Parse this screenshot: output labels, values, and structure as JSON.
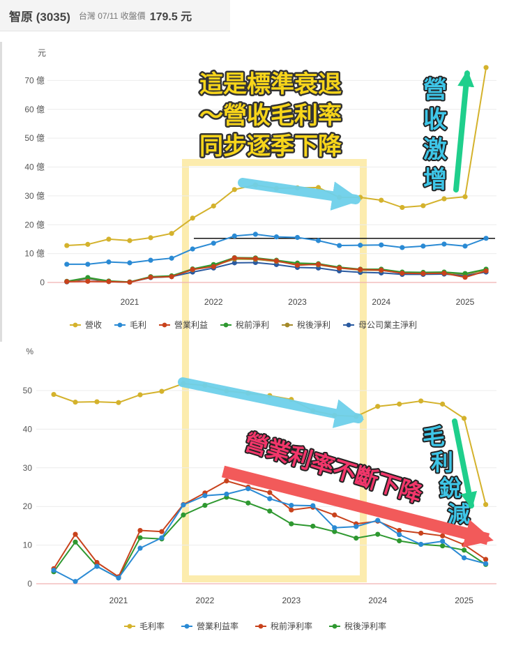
{
  "header": {
    "name": "智原 (3035)",
    "market_date": "台灣 07/11 收盤價",
    "price": "179.5 元"
  },
  "chart_data": [
    {
      "type": "line",
      "title": "",
      "ylabel": "元",
      "ylim": [
        0,
        75
      ],
      "yticks": [
        "0",
        "10 億",
        "20 億",
        "30 億",
        "40 億",
        "50 億",
        "60 億",
        "70 億"
      ],
      "x": [
        2020.25,
        2020.5,
        2020.75,
        2021.0,
        2021.25,
        2021.5,
        2021.75,
        2022.0,
        2022.25,
        2022.5,
        2022.75,
        2023.0,
        2023.25,
        2023.5,
        2023.75,
        2024.0,
        2024.25,
        2024.5,
        2024.75,
        2025.0,
        2025.25
      ],
      "xticks": [
        "2021",
        "2022",
        "2023",
        "2024",
        "2025"
      ],
      "reference_line": 15.3,
      "series": [
        {
          "name": "營收",
          "color": "#d4b22c",
          "values": [
            12.8,
            13.2,
            15.0,
            14.5,
            15.5,
            17.0,
            22.3,
            26.5,
            32.2,
            33.8,
            32.6,
            32.8,
            32.9,
            29.5,
            29.5,
            28.5,
            26.0,
            26.6,
            29.0,
            29.7,
            74.5
          ]
        },
        {
          "name": "毛利",
          "color": "#2a8ad4",
          "values": [
            6.3,
            6.3,
            7.1,
            6.8,
            7.7,
            8.4,
            11.6,
            13.6,
            16.1,
            16.7,
            15.8,
            15.6,
            14.5,
            12.8,
            12.9,
            13.0,
            12.1,
            12.6,
            13.3,
            12.6,
            15.3
          ]
        },
        {
          "name": "營業利益",
          "color": "#c8421c",
          "values": [
            0.3,
            0.4,
            0.3,
            0.1,
            1.8,
            2.0,
            4.5,
            5.5,
            8.5,
            8.3,
            7.5,
            6.0,
            6.3,
            5.0,
            4.5,
            4.3,
            3.2,
            3.1,
            3.2,
            1.8,
            4.0
          ]
        },
        {
          "name": "稅前淨利",
          "color": "#2e9830",
          "values": [
            0.4,
            1.7,
            0.5,
            0.2,
            2.0,
            2.3,
            4.7,
            6.2,
            8.6,
            8.5,
            7.7,
            6.7,
            6.5,
            5.3,
            4.6,
            4.6,
            3.6,
            3.5,
            3.6,
            3.1,
            4.6
          ]
        },
        {
          "name": "稅後淨利",
          "color": "#a58a2a",
          "values": [
            0.3,
            1.5,
            0.4,
            0.1,
            1.9,
            2.2,
            4.4,
            5.8,
            8.1,
            8.0,
            7.3,
            6.3,
            6.1,
            5.0,
            4.3,
            4.2,
            3.3,
            3.3,
            3.4,
            2.8,
            4.3
          ]
        },
        {
          "name": "母公司業主淨利",
          "color": "#2a5aa0",
          "values": [
            0.2,
            1.3,
            0.3,
            0.1,
            1.7,
            2.0,
            3.6,
            5.0,
            6.8,
            6.9,
            6.2,
            5.2,
            5.0,
            4.0,
            3.5,
            3.3,
            2.8,
            2.8,
            2.9,
            2.4,
            3.6
          ]
        }
      ],
      "annotations": [
        "這是標準衰退",
        "～營收毛利率",
        "同步逐季下降",
        "營",
        "收",
        "激",
        "增"
      ]
    },
    {
      "type": "line",
      "title": "",
      "ylabel": "%",
      "ylim": [
        0,
        55
      ],
      "yticks": [
        "0",
        "10",
        "20",
        "30",
        "40",
        "50"
      ],
      "x": [
        2020.25,
        2020.5,
        2020.75,
        2021.0,
        2021.25,
        2021.5,
        2021.75,
        2022.0,
        2022.25,
        2022.5,
        2022.75,
        2023.0,
        2023.25,
        2023.5,
        2023.75,
        2024.0,
        2024.25,
        2024.5,
        2024.75,
        2025.0,
        2025.25
      ],
      "xticks": [
        "2021",
        "2022",
        "2023",
        "2024",
        "2025"
      ],
      "series": [
        {
          "name": "毛利率",
          "color": "#d4b22c",
          "values": [
            49.0,
            47.0,
            47.1,
            46.9,
            48.9,
            49.8,
            51.8,
            51.3,
            49.9,
            49.3,
            48.7,
            47.7,
            44.8,
            43.6,
            43.3,
            45.9,
            46.5,
            47.3,
            46.5,
            42.8,
            20.5
          ]
        },
        {
          "name": "營業利益率",
          "color": "#2a8ad4",
          "values": [
            3.5,
            0.6,
            4.5,
            1.5,
            9.2,
            11.9,
            20.4,
            22.8,
            23.2,
            24.6,
            22.0,
            20.3,
            20.2,
            14.5,
            14.8,
            16.4,
            12.7,
            10.2,
            11.0,
            6.7,
            5.2
          ]
        },
        {
          "name": "稅前淨利率",
          "color": "#c8421c",
          "values": [
            3.9,
            12.8,
            5.5,
            1.8,
            13.8,
            13.5,
            20.5,
            23.5,
            26.6,
            25.0,
            23.6,
            19.1,
            19.8,
            17.8,
            15.5,
            16.2,
            13.8,
            13.1,
            12.4,
            10.1,
            6.3
          ]
        },
        {
          "name": "稅後淨利率",
          "color": "#2e9830",
          "values": [
            3.1,
            10.8,
            4.5,
            1.5,
            11.9,
            11.6,
            17.8,
            20.3,
            22.4,
            20.9,
            18.8,
            15.5,
            14.9,
            13.5,
            11.8,
            12.8,
            11.1,
            10.2,
            9.8,
            8.7,
            5.0
          ]
        }
      ],
      "annotations": [
        "營業利率不斷下降",
        "毛",
        "利",
        "銳",
        "減"
      ]
    }
  ]
}
